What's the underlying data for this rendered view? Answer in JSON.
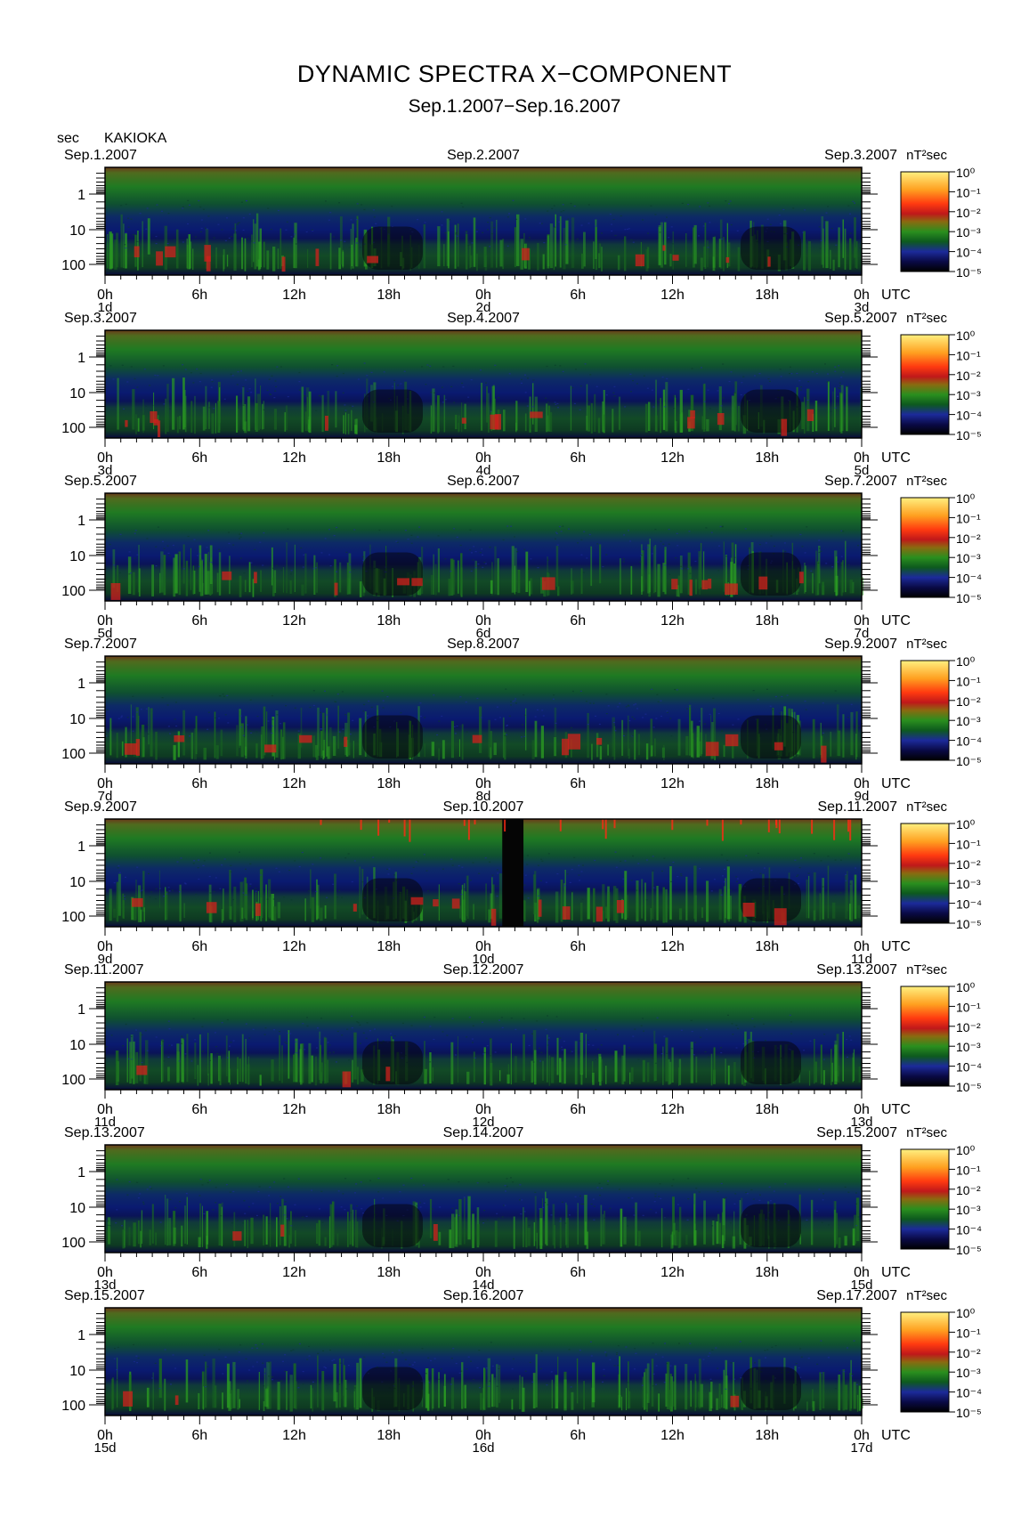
{
  "title": "DYNAMIC SPECTRA X−COMPONENT",
  "subtitle": "Sep.1.2007−Sep.16.2007",
  "station": "KAKIOKA",
  "chart_data": {
    "type": "heatmap",
    "y_unit": "sec",
    "y_ticks": [
      "1",
      "10",
      "100"
    ],
    "x_ticks": [
      "0h",
      "6h",
      "12h",
      "18h",
      "0h",
      "6h",
      "12h",
      "18h",
      "0h"
    ],
    "x_unit": "UTC",
    "colorbar_label": "nT²sec",
    "colorbar_ticks": [
      "10⁰",
      "10⁻¹",
      "10⁻²",
      "10⁻³",
      "10⁻⁴",
      "10⁻⁵"
    ],
    "colors": [
      "#000000",
      "#0a0a46",
      "#1c2a9a",
      "#0d5a1e",
      "#2a8f1e",
      "#c0181a",
      "#ff3a10",
      "#ffa020",
      "#fff080"
    ],
    "panels": [
      {
        "date_left": "Sep.1.2007",
        "date_mid": "Sep.2.2007",
        "date_right": "Sep.3.2007",
        "day_left": "1d",
        "day_mid": "2d",
        "day_right": "3d"
      },
      {
        "date_left": "Sep.3.2007",
        "date_mid": "Sep.4.2007",
        "date_right": "Sep.5.2007",
        "day_left": "3d",
        "day_mid": "4d",
        "day_right": "5d"
      },
      {
        "date_left": "Sep.5.2007",
        "date_mid": "Sep.6.2007",
        "date_right": "Sep.7.2007",
        "day_left": "5d",
        "day_mid": "6d",
        "day_right": "7d"
      },
      {
        "date_left": "Sep.7.2007",
        "date_mid": "Sep.8.2007",
        "date_right": "Sep.9.2007",
        "day_left": "7d",
        "day_mid": "8d",
        "day_right": "9d"
      },
      {
        "date_left": "Sep.9.2007",
        "date_mid": "Sep.10.2007",
        "date_right": "Sep.11.2007",
        "day_left": "9d",
        "day_mid": "10d",
        "day_right": "11d"
      },
      {
        "date_left": "Sep.11.2007",
        "date_mid": "Sep.12.2007",
        "date_right": "Sep.13.2007",
        "day_left": "11d",
        "day_mid": "12d",
        "day_right": "13d"
      },
      {
        "date_left": "Sep.13.2007",
        "date_mid": "Sep.14.2007",
        "date_right": "Sep.15.2007",
        "day_left": "13d",
        "day_mid": "14d",
        "day_right": "15d"
      },
      {
        "date_left": "Sep.15.2007",
        "date_mid": "Sep.16.2007",
        "date_right": "Sep.17.2007",
        "day_left": "15d",
        "day_mid": "16d",
        "day_right": "17d"
      }
    ]
  }
}
